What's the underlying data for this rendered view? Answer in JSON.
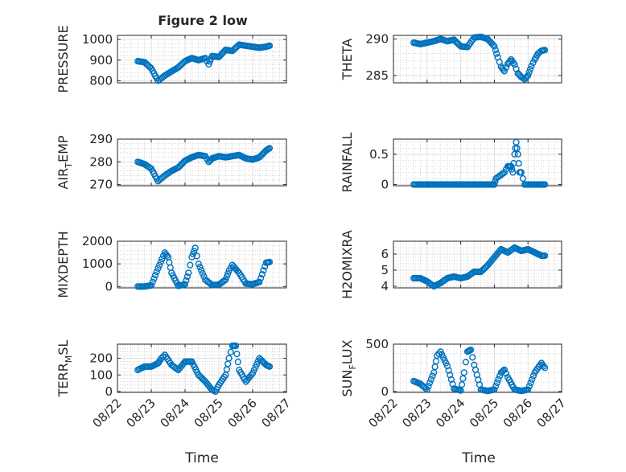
{
  "figure": {
    "title": "Figure 2 low",
    "xlabel": "Time"
  },
  "colors": {
    "marker": "#0072BD",
    "axis": "#262626",
    "grid": "#dcdcdc",
    "background": "#ffffff"
  },
  "x_ticks": [
    "08/22",
    "08/23",
    "08/24",
    "08/25",
    "08/26",
    "08/27"
  ],
  "chart_data": [
    {
      "type": "scatter",
      "id": "pressure",
      "column": "left",
      "row": 0,
      "ylabel": "PRESSURE",
      "ylabel_sub": "",
      "ylabel_tail": "",
      "ylim": [
        790,
        1020
      ],
      "yticks": [
        800,
        900,
        1000
      ],
      "x": [
        22.6,
        22.8,
        23.0,
        23.2,
        23.4,
        23.6,
        23.8,
        24.0,
        24.2,
        24.4,
        24.6,
        24.7,
        24.8,
        25.0,
        25.2,
        25.4,
        25.6,
        25.8,
        26.0,
        26.2,
        26.4,
        26.5
      ],
      "y": [
        895,
        890,
        860,
        800,
        825,
        845,
        865,
        895,
        910,
        900,
        910,
        880,
        920,
        915,
        950,
        945,
        975,
        970,
        965,
        960,
        965,
        970
      ]
    },
    {
      "type": "scatter",
      "id": "theta",
      "column": "right",
      "row": 0,
      "ylabel": "THETA",
      "ylabel_sub": "",
      "ylabel_tail": "",
      "ylim": [
        284,
        290.5
      ],
      "yticks": [
        285,
        290
      ],
      "x": [
        22.6,
        22.8,
        23.0,
        23.2,
        23.4,
        23.6,
        23.8,
        24.0,
        24.2,
        24.4,
        24.6,
        24.8,
        25.0,
        25.1,
        25.2,
        25.3,
        25.4,
        25.5,
        25.6,
        25.7,
        25.8,
        25.9,
        26.0,
        26.1,
        26.2,
        26.3,
        26.4,
        26.5
      ],
      "y": [
        289.5,
        289.3,
        289.5,
        289.7,
        290.0,
        289.7,
        289.9,
        289.0,
        288.9,
        290.2,
        290.3,
        290.0,
        289.0,
        287.5,
        286.2,
        285.6,
        286.6,
        287.2,
        286.5,
        285.3,
        284.8,
        284.5,
        285.0,
        286.3,
        287.2,
        288.0,
        288.4,
        288.5
      ]
    },
    {
      "type": "scatter",
      "id": "air_temp",
      "column": "left",
      "row": 1,
      "ylabel": "AIR",
      "ylabel_sub": "T",
      "ylabel_tail": "EMP",
      "ylim": [
        269.5,
        290
      ],
      "yticks": [
        270,
        280,
        290
      ],
      "x": [
        22.6,
        22.8,
        23.0,
        23.2,
        23.4,
        23.6,
        23.8,
        24.0,
        24.2,
        24.4,
        24.6,
        24.7,
        24.8,
        25.0,
        25.2,
        25.4,
        25.6,
        25.8,
        26.0,
        26.2,
        26.4,
        26.5
      ],
      "y": [
        280,
        279,
        277,
        271.5,
        274,
        276,
        277.5,
        280.5,
        282,
        283,
        282.5,
        280,
        281.5,
        282.5,
        282,
        282.5,
        283,
        281.5,
        281,
        282,
        285,
        286
      ]
    },
    {
      "type": "scatter",
      "id": "rainfall",
      "column": "right",
      "row": 1,
      "ylabel": "RAINFALL",
      "ylabel_sub": "",
      "ylabel_tail": "",
      "ylim": [
        -0.02,
        0.75
      ],
      "yticks": [
        0,
        0.5
      ],
      "x": [
        22.6,
        22.9,
        23.2,
        23.5,
        23.8,
        24.1,
        24.4,
        24.7,
        25.0,
        25.05,
        25.3,
        25.4,
        25.5,
        25.55,
        25.6,
        25.65,
        25.7,
        25.75,
        25.8,
        25.9,
        26.2,
        26.5
      ],
      "y": [
        0,
        0,
        0,
        0,
        0,
        0,
        0,
        0,
        0,
        0.1,
        0.2,
        0.3,
        0.3,
        0.2,
        0.5,
        0.7,
        0.5,
        0.2,
        0.2,
        0,
        0,
        0
      ]
    },
    {
      "type": "scatter",
      "id": "mixdepth",
      "column": "left",
      "row": 2,
      "ylabel": "MIXDEPTH",
      "ylabel_sub": "",
      "ylabel_tail": "",
      "ylim": [
        -60,
        2000
      ],
      "yticks": [
        0,
        1000,
        2000
      ],
      "x": [
        22.6,
        22.8,
        23.0,
        23.2,
        23.4,
        23.5,
        23.6,
        23.8,
        24.0,
        24.1,
        24.2,
        24.3,
        24.4,
        24.6,
        24.8,
        25.0,
        25.2,
        25.3,
        25.4,
        25.6,
        25.8,
        26.0,
        26.2,
        26.4,
        26.5
      ],
      "y": [
        0,
        0,
        50,
        800,
        1500,
        1300,
        600,
        30,
        100,
        600,
        1300,
        1700,
        1000,
        300,
        60,
        80,
        300,
        700,
        950,
        600,
        130,
        100,
        200,
        1050,
        1080
      ]
    },
    {
      "type": "scatter",
      "id": "h2omixra",
      "column": "right",
      "row": 2,
      "ylabel": "H2OMIXRA",
      "ylabel_sub": "",
      "ylabel_tail": "",
      "ylim": [
        3.9,
        6.8
      ],
      "yticks": [
        4,
        5,
        6
      ],
      "x": [
        22.6,
        22.8,
        23.0,
        23.2,
        23.4,
        23.6,
        23.8,
        24.0,
        24.2,
        24.4,
        24.6,
        24.8,
        25.0,
        25.2,
        25.4,
        25.6,
        25.8,
        26.0,
        26.2,
        26.4,
        26.5
      ],
      "y": [
        4.5,
        4.5,
        4.3,
        4.0,
        4.2,
        4.5,
        4.6,
        4.5,
        4.6,
        4.9,
        4.9,
        5.3,
        5.8,
        6.3,
        6.1,
        6.4,
        6.2,
        6.3,
        6.1,
        5.9,
        5.9
      ]
    },
    {
      "type": "scatter",
      "id": "terr_msl",
      "column": "left",
      "row": 3,
      "ylabel": "TERR",
      "ylabel_sub": "M",
      "ylabel_tail": "SL",
      "ylim": [
        -5,
        285
      ],
      "yticks": [
        0,
        100,
        200
      ],
      "x": [
        22.6,
        22.8,
        23.0,
        23.2,
        23.3,
        23.4,
        23.6,
        23.8,
        24.0,
        24.2,
        24.4,
        24.6,
        24.8,
        24.9,
        25.0,
        25.2,
        25.3,
        25.4,
        25.5,
        25.6,
        25.8,
        26.0,
        26.2,
        26.4,
        26.5
      ],
      "y": [
        130,
        150,
        150,
        170,
        200,
        220,
        160,
        130,
        180,
        180,
        100,
        60,
        10,
        0,
        40,
        100,
        200,
        275,
        275,
        130,
        60,
        110,
        200,
        160,
        150
      ]
    },
    {
      "type": "scatter",
      "id": "sun_flux",
      "column": "right",
      "row": 3,
      "ylabel": "SUN",
      "ylabel_sub": "F",
      "ylabel_tail": "LUX",
      "ylim": [
        -10,
        500
      ],
      "yticks": [
        0,
        500
      ],
      "x": [
        22.6,
        22.8,
        23.0,
        23.2,
        23.3,
        23.4,
        23.6,
        23.8,
        24.0,
        24.1,
        24.2,
        24.3,
        24.4,
        24.6,
        24.8,
        25.0,
        25.2,
        25.3,
        25.4,
        25.6,
        25.8,
        26.0,
        26.2,
        26.4,
        26.5
      ],
      "y": [
        110,
        80,
        20,
        200,
        380,
        420,
        270,
        30,
        10,
        200,
        420,
        440,
        280,
        20,
        5,
        20,
        200,
        230,
        150,
        20,
        5,
        20,
        200,
        300,
        250
      ]
    }
  ]
}
